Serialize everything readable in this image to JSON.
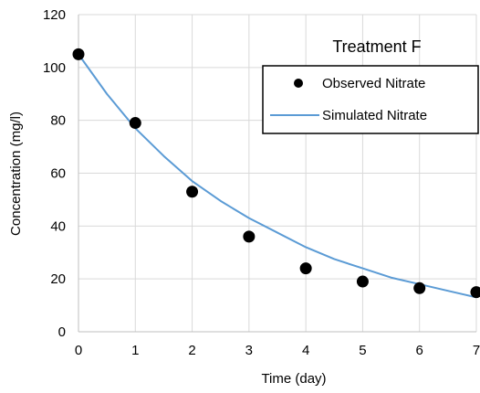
{
  "chart_data": {
    "type": "scatter",
    "title": "Treatment F",
    "xlabel": "Time (day)",
    "ylabel": "Concentration (mg/l)",
    "xlim": [
      0,
      7
    ],
    "ylim": [
      0,
      120
    ],
    "xticks": [
      0,
      1,
      2,
      3,
      4,
      5,
      6,
      7
    ],
    "yticks": [
      0,
      20,
      40,
      60,
      80,
      100,
      120
    ],
    "grid": true,
    "legend_position": "top-right",
    "series": [
      {
        "name": "Observed Nitrate",
        "kind": "scatter",
        "color": "#000000",
        "x": [
          0,
          1,
          2,
          3,
          4,
          5,
          6,
          7
        ],
        "y": [
          105,
          79,
          53,
          36,
          24,
          19,
          16.5,
          15
        ]
      },
      {
        "name": "Simulated Nitrate",
        "kind": "line",
        "color": "#5B9BD5",
        "x": [
          0,
          0.5,
          1,
          1.5,
          2,
          2.5,
          3,
          3.5,
          4,
          4.5,
          5,
          5.5,
          6,
          6.5,
          7
        ],
        "y": [
          105,
          90,
          77,
          66.5,
          57,
          49.5,
          43,
          37.5,
          32,
          27.5,
          24,
          20.5,
          18,
          15.5,
          13
        ]
      }
    ]
  }
}
